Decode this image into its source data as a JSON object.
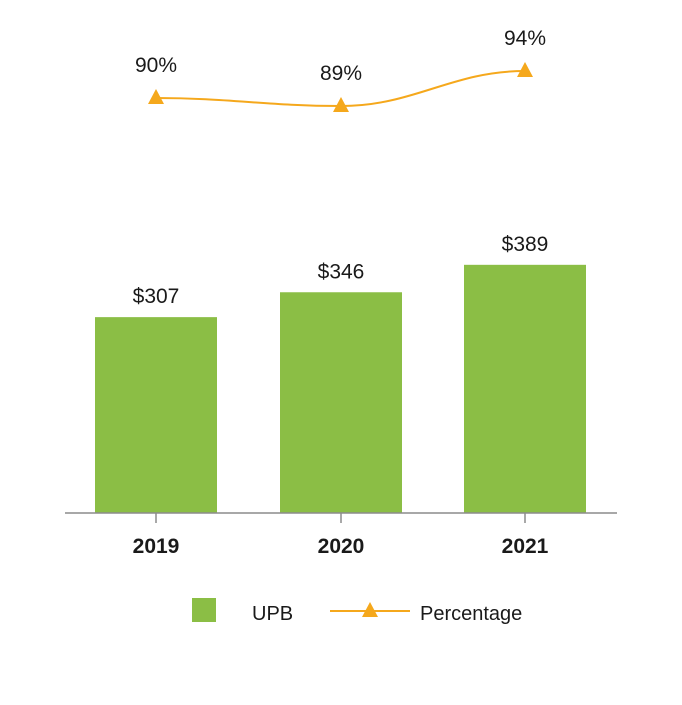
{
  "chart_data": {
    "type": "bar",
    "categories": [
      "2019",
      "2020",
      "2021"
    ],
    "series": [
      {
        "name": "UPB",
        "type": "bar",
        "values": [
          307,
          346,
          389
        ],
        "labels": [
          "$307",
          "$346",
          "$389"
        ],
        "color": "#8bbe45"
      },
      {
        "name": "Percentage",
        "type": "line",
        "marker": "triangle",
        "values": [
          90,
          89,
          94
        ],
        "labels": [
          "90%",
          "89%",
          "94%"
        ],
        "color": "#f5a81c"
      }
    ],
    "legend": {
      "placement": "bottom",
      "items": [
        "UPB",
        "Percentage"
      ]
    },
    "grid": false,
    "axis_color": "#8c8c8c"
  }
}
